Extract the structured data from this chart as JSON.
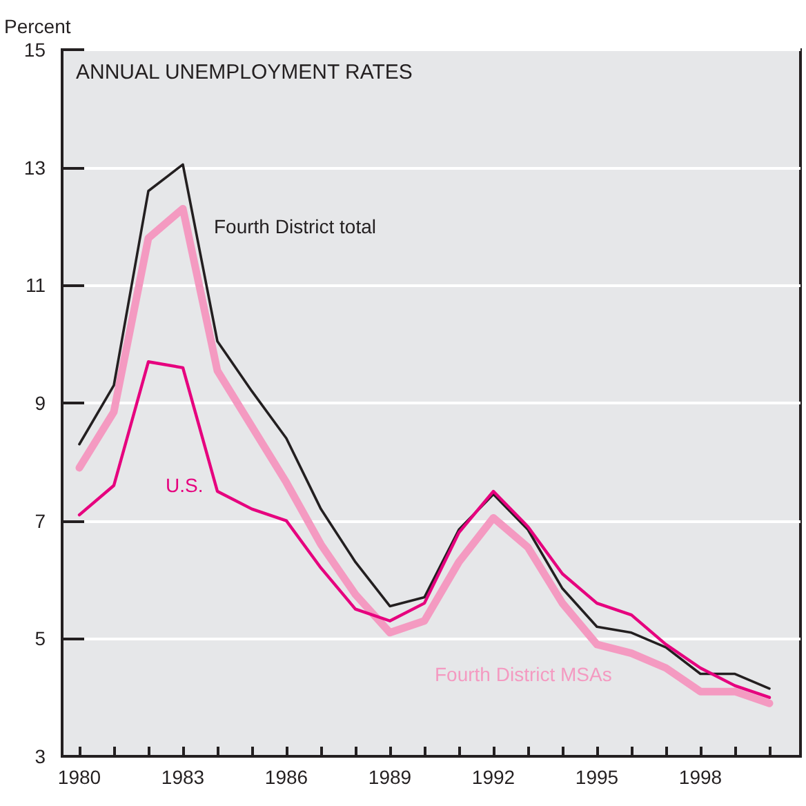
{
  "chart_data": {
    "type": "line",
    "title": "ANNUAL UNEMPLOYMENT RATES",
    "ylabel": "Percent",
    "x": [
      1980,
      1981,
      1982,
      1983,
      1984,
      1985,
      1986,
      1987,
      1988,
      1989,
      1990,
      1991,
      1992,
      1993,
      1994,
      1995,
      1996,
      1997,
      1998,
      1999,
      2000
    ],
    "series": [
      {
        "name": "Fourth District total",
        "color": "#231f20",
        "values": [
          8.3,
          9.3,
          12.6,
          13.05,
          10.05,
          9.2,
          8.4,
          7.2,
          6.3,
          5.55,
          5.7,
          6.85,
          7.45,
          6.85,
          5.85,
          5.2,
          5.1,
          4.85,
          4.4,
          4.4,
          4.15
        ]
      },
      {
        "name": "Fourth District MSAs",
        "color": "#f49ac1",
        "values": [
          7.9,
          8.85,
          11.8,
          12.3,
          9.55,
          8.6,
          7.65,
          6.6,
          5.75,
          5.1,
          5.3,
          6.3,
          7.05,
          6.55,
          5.6,
          4.9,
          4.75,
          4.5,
          4.1,
          4.1,
          3.9
        ]
      },
      {
        "name": "U.S.",
        "color": "#e6007e",
        "values": [
          7.1,
          7.6,
          9.7,
          9.6,
          7.5,
          7.2,
          7.0,
          6.2,
          5.5,
          5.3,
          5.6,
          6.8,
          7.5,
          6.9,
          6.1,
          5.6,
          5.4,
          4.9,
          4.5,
          4.2,
          4.0
        ]
      }
    ],
    "xlim": [
      1979.5,
      2000.9
    ],
    "xticks": [
      1980,
      {
        "value": 1981,
        "label": null
      },
      {
        "value": 1982,
        "label": null
      },
      1983,
      {
        "value": 1984,
        "label": null
      },
      {
        "value": 1985,
        "label": null
      },
      1986,
      {
        "value": 1987,
        "label": null
      },
      {
        "value": 1988,
        "label": null
      },
      1989,
      {
        "value": 1990,
        "label": null
      },
      {
        "value": 1991,
        "label": null
      },
      1992,
      {
        "value": 1993,
        "label": null
      },
      {
        "value": 1994,
        "label": null
      },
      1995,
      {
        "value": 1996,
        "label": null
      },
      {
        "value": 1997,
        "label": null
      },
      1998,
      {
        "value": 1999,
        "label": null
      },
      {
        "value": 2000,
        "label": null
      }
    ],
    "ylim": [
      3,
      15
    ],
    "yticks": [
      3,
      5,
      7,
      9,
      11,
      13,
      15
    ],
    "grid": "y",
    "legend": false,
    "marker": "none",
    "line_style": "solid"
  }
}
